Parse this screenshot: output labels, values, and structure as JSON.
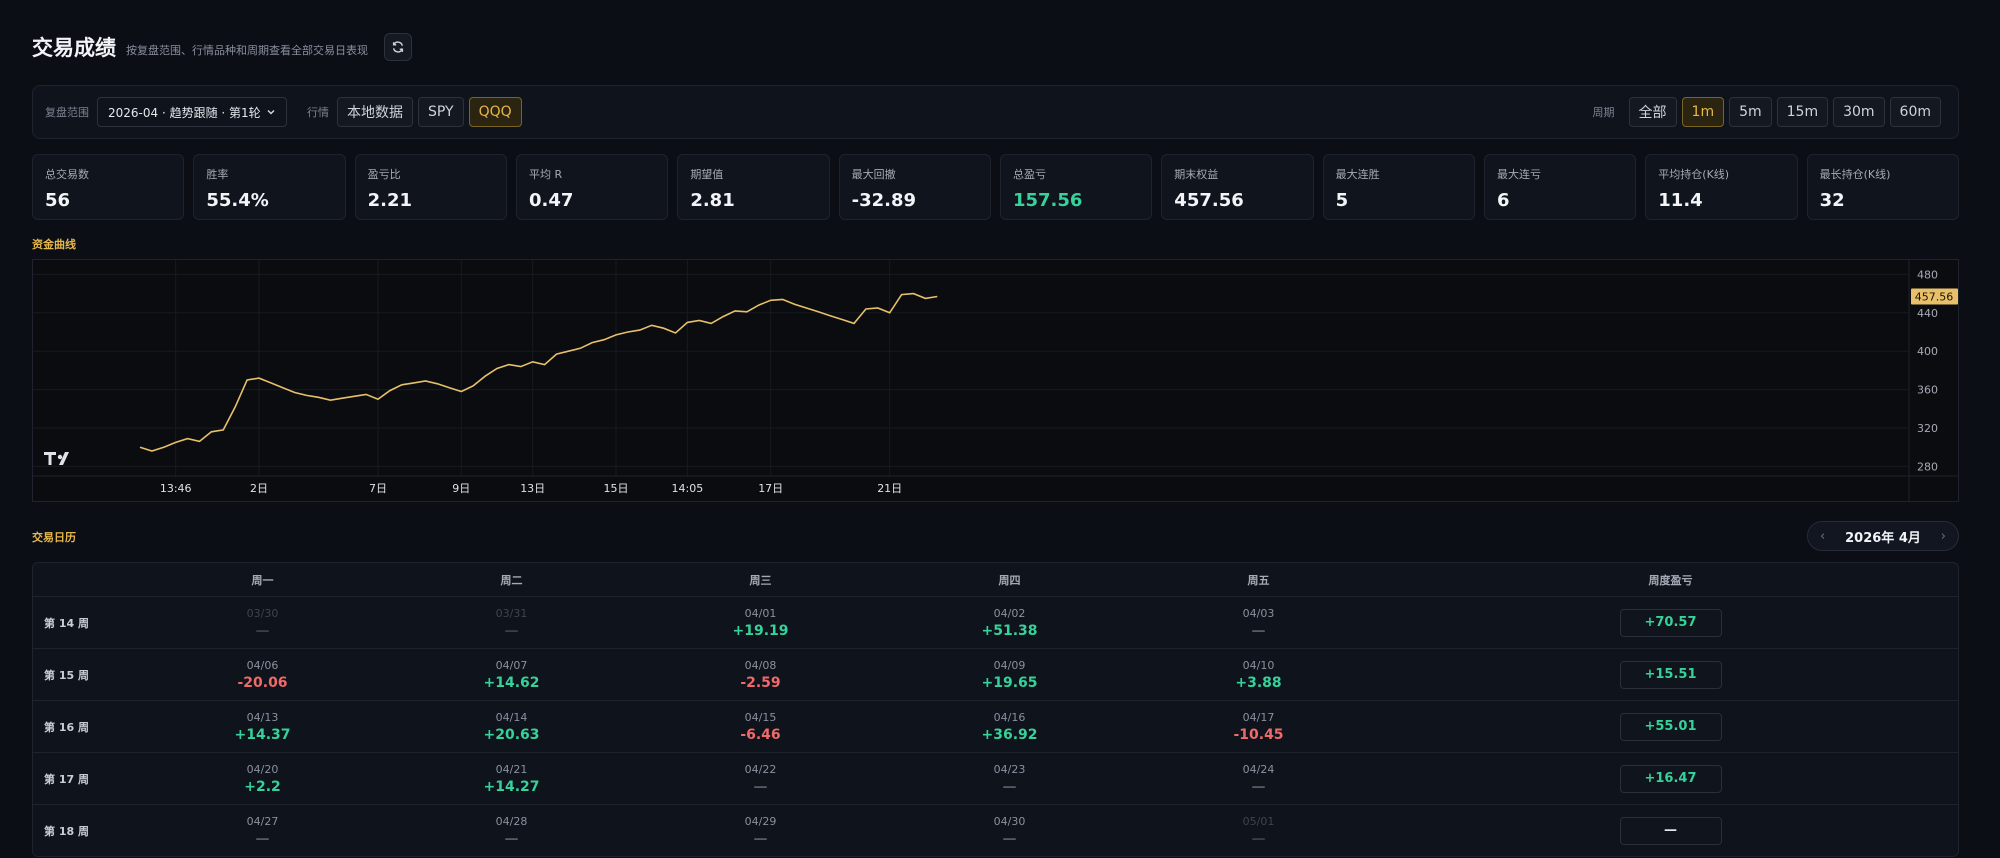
{
  "header": {
    "title": "交易成绩",
    "subtitle": "按复盘范围、行情品种和周期查看全部交易日表现"
  },
  "filters": {
    "range_label": "复盘范围",
    "range_value": "2026-04 · 趋势跟随 · 第1轮",
    "market_label": "行情",
    "markets": [
      {
        "label": "本地数据",
        "active": false
      },
      {
        "label": "SPY",
        "active": false
      },
      {
        "label": "QQQ",
        "active": true
      }
    ],
    "period_label": "周期",
    "periods": [
      {
        "label": "全部",
        "active": false
      },
      {
        "label": "1m",
        "active": true
      },
      {
        "label": "5m",
        "active": false
      },
      {
        "label": "15m",
        "active": false
      },
      {
        "label": "30m",
        "active": false
      },
      {
        "label": "60m",
        "active": false
      }
    ]
  },
  "stats": [
    {
      "label": "总交易数",
      "value": "56",
      "tone": "normal"
    },
    {
      "label": "胜率",
      "value": "55.4%",
      "tone": "normal"
    },
    {
      "label": "盈亏比",
      "value": "2.21",
      "tone": "normal"
    },
    {
      "label": "平均 R",
      "value": "0.47",
      "tone": "normal"
    },
    {
      "label": "期望值",
      "value": "2.81",
      "tone": "normal"
    },
    {
      "label": "最大回撤",
      "value": "-32.89",
      "tone": "normal"
    },
    {
      "label": "总盈亏",
      "value": "157.56",
      "tone": "green"
    },
    {
      "label": "期末权益",
      "value": "457.56",
      "tone": "normal"
    },
    {
      "label": "最大连胜",
      "value": "5",
      "tone": "normal"
    },
    {
      "label": "最大连亏",
      "value": "6",
      "tone": "normal"
    },
    {
      "label": "平均持仓(K线)",
      "value": "11.4",
      "tone": "normal"
    },
    {
      "label": "最长持仓(K线)",
      "value": "32",
      "tone": "normal"
    }
  ],
  "equity_section_title": "资金曲线",
  "chart_data": {
    "type": "line",
    "title": "",
    "line_color": "#e8c06a",
    "y_ticks": [
      480,
      440,
      400,
      360,
      320,
      280
    ],
    "ylim": [
      270,
      495
    ],
    "x_ticks": [
      "13:46",
      "2日",
      "7日",
      "9日",
      "13日",
      "15日",
      "14:05",
      "17日",
      "21日"
    ],
    "x_tick_index": [
      3,
      10,
      20,
      27,
      33,
      40,
      46,
      53,
      63
    ],
    "values": [
      300,
      296,
      300,
      305,
      309,
      306,
      316,
      318,
      342,
      370,
      372,
      367,
      362,
      357,
      354,
      352,
      349,
      351,
      353,
      355,
      350,
      359,
      365,
      367,
      369,
      366,
      362,
      358,
      364,
      374,
      382,
      386,
      384,
      389,
      386,
      397,
      400,
      403,
      409,
      412,
      417,
      420,
      422,
      427,
      424,
      419,
      430,
      432,
      429,
      436,
      442,
      441,
      448,
      453,
      454,
      449,
      445,
      441,
      437,
      433,
      429,
      444,
      445,
      440,
      459,
      460,
      455,
      457
    ],
    "last_value_label": "457.56",
    "series": [
      {
        "values_ref": "values"
      }
    ]
  },
  "calendar": {
    "section_title": "交易日历",
    "month_label": "2026年 4月",
    "headers": [
      "周一",
      "周二",
      "周三",
      "周四",
      "周五",
      "周度盈亏"
    ],
    "weeks": [
      {
        "label": "第 14 周",
        "days": [
          {
            "date": "03/30",
            "pnl": "—",
            "state": "dim"
          },
          {
            "date": "03/31",
            "pnl": "—",
            "state": "dim"
          },
          {
            "date": "04/01",
            "pnl": "+19.19",
            "state": "pos"
          },
          {
            "date": "04/02",
            "pnl": "+51.38",
            "state": "pos"
          },
          {
            "date": "04/03",
            "pnl": "—",
            "state": "none"
          }
        ],
        "total": "+70.57",
        "total_state": "pos"
      },
      {
        "label": "第 15 周",
        "days": [
          {
            "date": "04/06",
            "pnl": "-20.06",
            "state": "neg"
          },
          {
            "date": "04/07",
            "pnl": "+14.62",
            "state": "pos"
          },
          {
            "date": "04/08",
            "pnl": "-2.59",
            "state": "neg"
          },
          {
            "date": "04/09",
            "pnl": "+19.65",
            "state": "pos"
          },
          {
            "date": "04/10",
            "pnl": "+3.88",
            "state": "pos"
          }
        ],
        "total": "+15.51",
        "total_state": "pos"
      },
      {
        "label": "第 16 周",
        "days": [
          {
            "date": "04/13",
            "pnl": "+14.37",
            "state": "pos"
          },
          {
            "date": "04/14",
            "pnl": "+20.63",
            "state": "pos"
          },
          {
            "date": "04/15",
            "pnl": "-6.46",
            "state": "neg"
          },
          {
            "date": "04/16",
            "pnl": "+36.92",
            "state": "pos"
          },
          {
            "date": "04/17",
            "pnl": "-10.45",
            "state": "neg"
          }
        ],
        "total": "+55.01",
        "total_state": "pos"
      },
      {
        "label": "第 17 周",
        "days": [
          {
            "date": "04/20",
            "pnl": "+2.2",
            "state": "pos"
          },
          {
            "date": "04/21",
            "pnl": "+14.27",
            "state": "pos"
          },
          {
            "date": "04/22",
            "pnl": "—",
            "state": "none"
          },
          {
            "date": "04/23",
            "pnl": "—",
            "state": "none"
          },
          {
            "date": "04/24",
            "pnl": "—",
            "state": "none"
          }
        ],
        "total": "+16.47",
        "total_state": "pos"
      },
      {
        "label": "第 18 周",
        "days": [
          {
            "date": "04/27",
            "pnl": "—",
            "state": "none"
          },
          {
            "date": "04/28",
            "pnl": "—",
            "state": "none"
          },
          {
            "date": "04/29",
            "pnl": "—",
            "state": "none"
          },
          {
            "date": "04/30",
            "pnl": "—",
            "state": "none"
          },
          {
            "date": "05/01",
            "pnl": "—",
            "state": "dim"
          }
        ],
        "total": "—",
        "total_state": "empty"
      }
    ]
  }
}
